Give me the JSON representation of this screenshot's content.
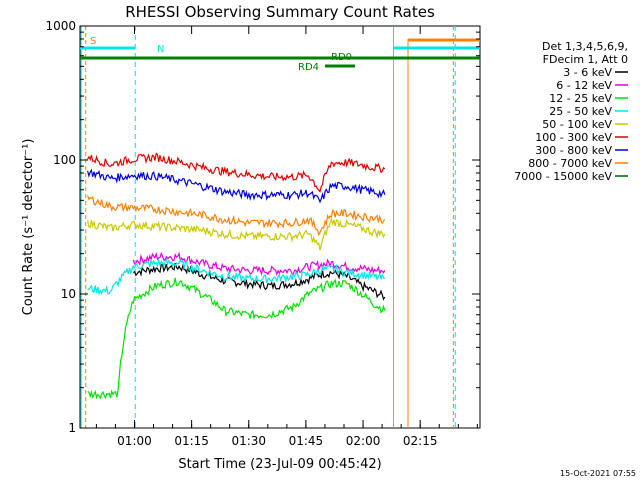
{
  "chart_data": {
    "type": "line",
    "title": "RHESSI Observing Summary Count Rates",
    "xlabel": "Start Time (23-Jul-09 00:45:42)",
    "ylabel": "Count Rate (s⁻¹ detector⁻¹)",
    "x_units": "minutes since 00:45:42",
    "xlim": [
      0,
      105
    ],
    "ylim": [
      1,
      1000
    ],
    "yscale": "log",
    "x_ticks": [
      {
        "value": 14.3,
        "label": "01:00"
      },
      {
        "value": 29.3,
        "label": "01:15"
      },
      {
        "value": 44.3,
        "label": "01:30"
      },
      {
        "value": 59.3,
        "label": "01:45"
      },
      {
        "value": 74.3,
        "label": "02:00"
      },
      {
        "value": 89.3,
        "label": "02:15"
      }
    ],
    "y_ticks": [
      {
        "value": 1,
        "label": "1"
      },
      {
        "value": 10,
        "label": "10"
      },
      {
        "value": 100,
        "label": "100"
      },
      {
        "value": 1000,
        "label": "1000"
      }
    ],
    "legend_header": [
      "Det 1,3,4,5,6,9,",
      "FDecim 1, Att 0"
    ],
    "legend_position": "right",
    "footer_date": "15-Oct-2021 07:55",
    "flags": [
      {
        "label": "S",
        "color": "#ff8000"
      },
      {
        "label": "N",
        "color": "#00e5e5"
      },
      {
        "label": "RD0",
        "color": "#007f00"
      },
      {
        "label": "RD4",
        "color": "#007f00"
      }
    ],
    "series": [
      {
        "name": "3 - 6 keV",
        "color": "#000000",
        "x": [
          14,
          20,
          26,
          32,
          38,
          44,
          50,
          56,
          60,
          63,
          66,
          70,
          74,
          77,
          80
        ],
        "values": [
          14.5,
          15.5,
          16,
          14,
          12.5,
          12,
          11.5,
          12,
          13,
          14,
          14.5,
          13.5,
          11.5,
          10.5,
          9.5
        ]
      },
      {
        "name": "6 - 12 keV",
        "color": "#e000e0",
        "x": [
          14,
          20,
          26,
          32,
          38,
          44,
          50,
          56,
          60,
          63,
          66,
          70,
          74,
          77,
          80
        ],
        "values": [
          17.5,
          19,
          19,
          17,
          15.5,
          15,
          15,
          15,
          16,
          16.5,
          17,
          16,
          15.5,
          15,
          15
        ]
      },
      {
        "name": "12 - 25 keV",
        "color": "#00e000",
        "x": [
          2,
          5,
          10,
          14,
          20,
          26,
          32,
          38,
          44,
          50,
          56,
          60,
          63,
          66,
          70,
          74,
          77,
          80
        ],
        "values": [
          1.8,
          1.8,
          1.8,
          9,
          11.5,
          12.5,
          10,
          7.5,
          7,
          7,
          8,
          10,
          11,
          12,
          12,
          10,
          8.5,
          7.5
        ]
      },
      {
        "name": "25 - 50 keV",
        "color": "#00e5e5",
        "x": [
          2,
          8,
          14,
          20,
          26,
          32,
          38,
          44,
          50,
          56,
          60,
          63,
          66,
          70,
          74,
          77,
          80
        ],
        "values": [
          11,
          10.5,
          16,
          17,
          17,
          15,
          13.5,
          13,
          13,
          13.5,
          14,
          15,
          15.5,
          14.5,
          14,
          13.5,
          13
        ]
      },
      {
        "name": "50 - 100 keV",
        "color": "#c8c800",
        "x": [
          2,
          8,
          14,
          20,
          26,
          32,
          38,
          44,
          50,
          56,
          60,
          63,
          66,
          70,
          74,
          77,
          80
        ],
        "values": [
          34,
          31,
          33,
          32,
          31,
          30,
          28,
          27,
          27,
          27,
          28,
          22,
          35,
          33,
          31,
          29,
          28
        ]
      },
      {
        "name": "100 - 300 keV",
        "color": "#e00000",
        "x": [
          2,
          8,
          14,
          20,
          26,
          32,
          38,
          44,
          50,
          56,
          60,
          63,
          66,
          70,
          74,
          77,
          80
        ],
        "values": [
          105,
          93,
          102,
          105,
          97,
          88,
          82,
          78,
          75,
          75,
          77,
          59,
          95,
          96,
          92,
          88,
          86
        ]
      },
      {
        "name": "300 - 800 keV",
        "color": "#0000e0",
        "x": [
          2,
          8,
          14,
          20,
          26,
          32,
          38,
          44,
          50,
          56,
          60,
          63,
          66,
          70,
          74,
          77,
          80
        ],
        "values": [
          82,
          73,
          77,
          76,
          70,
          64,
          58,
          55,
          55,
          55,
          57,
          49,
          64,
          64,
          60,
          58,
          55
        ]
      },
      {
        "name": "800 - 7000 keV",
        "color": "#ff8000",
        "x": [
          2,
          8,
          14,
          20,
          26,
          32,
          38,
          44,
          50,
          56,
          60,
          63,
          66,
          70,
          74,
          77,
          80
        ],
        "values": [
          52,
          45,
          44,
          43,
          41,
          39,
          36,
          34,
          34,
          34,
          36,
          29,
          40,
          40,
          38,
          37,
          36
        ]
      },
      {
        "name": "7000 - 15000 keV",
        "color": "#006000",
        "x": [],
        "values": []
      }
    ]
  }
}
